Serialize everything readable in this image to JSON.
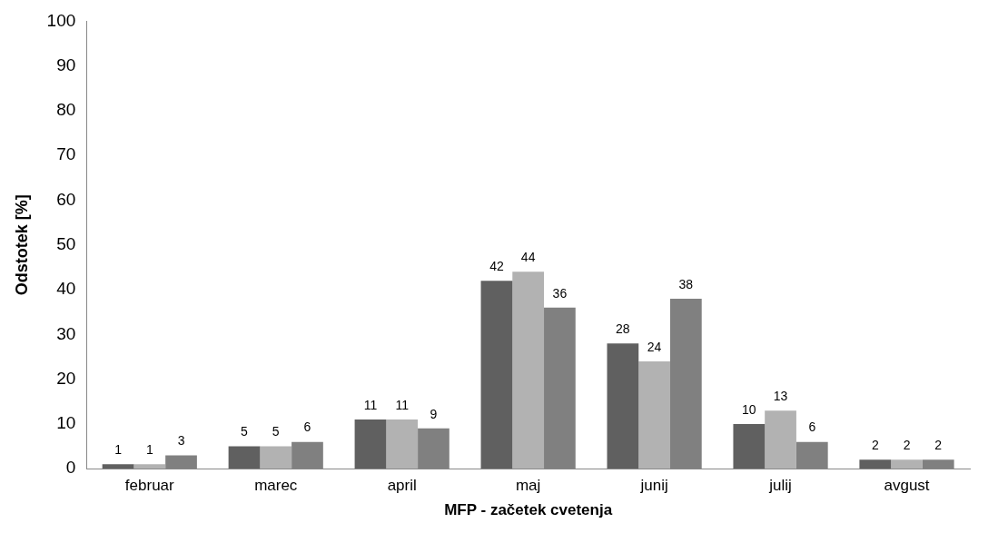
{
  "chart_data": {
    "type": "bar",
    "xlabel": "MFP - začetek cvetenja",
    "ylabel": "Odstotek [%]",
    "categories": [
      "februar",
      "marec",
      "april",
      "maj",
      "junij",
      "julij",
      "avgust"
    ],
    "series": [
      {
        "color": "#606060",
        "values": [
          1,
          5,
          11,
          42,
          28,
          10,
          2
        ]
      },
      {
        "color": "#b2b2b2",
        "values": [
          1,
          5,
          11,
          44,
          24,
          13,
          2
        ]
      },
      {
        "color": "#808080",
        "values": [
          3,
          6,
          9,
          36,
          38,
          6,
          2
        ]
      }
    ],
    "ylim": [
      0,
      100
    ],
    "yticks": [
      0,
      10,
      20,
      30,
      40,
      50,
      60,
      70,
      80,
      90,
      100
    ],
    "grid": false,
    "legend": false,
    "data_labels": true
  }
}
